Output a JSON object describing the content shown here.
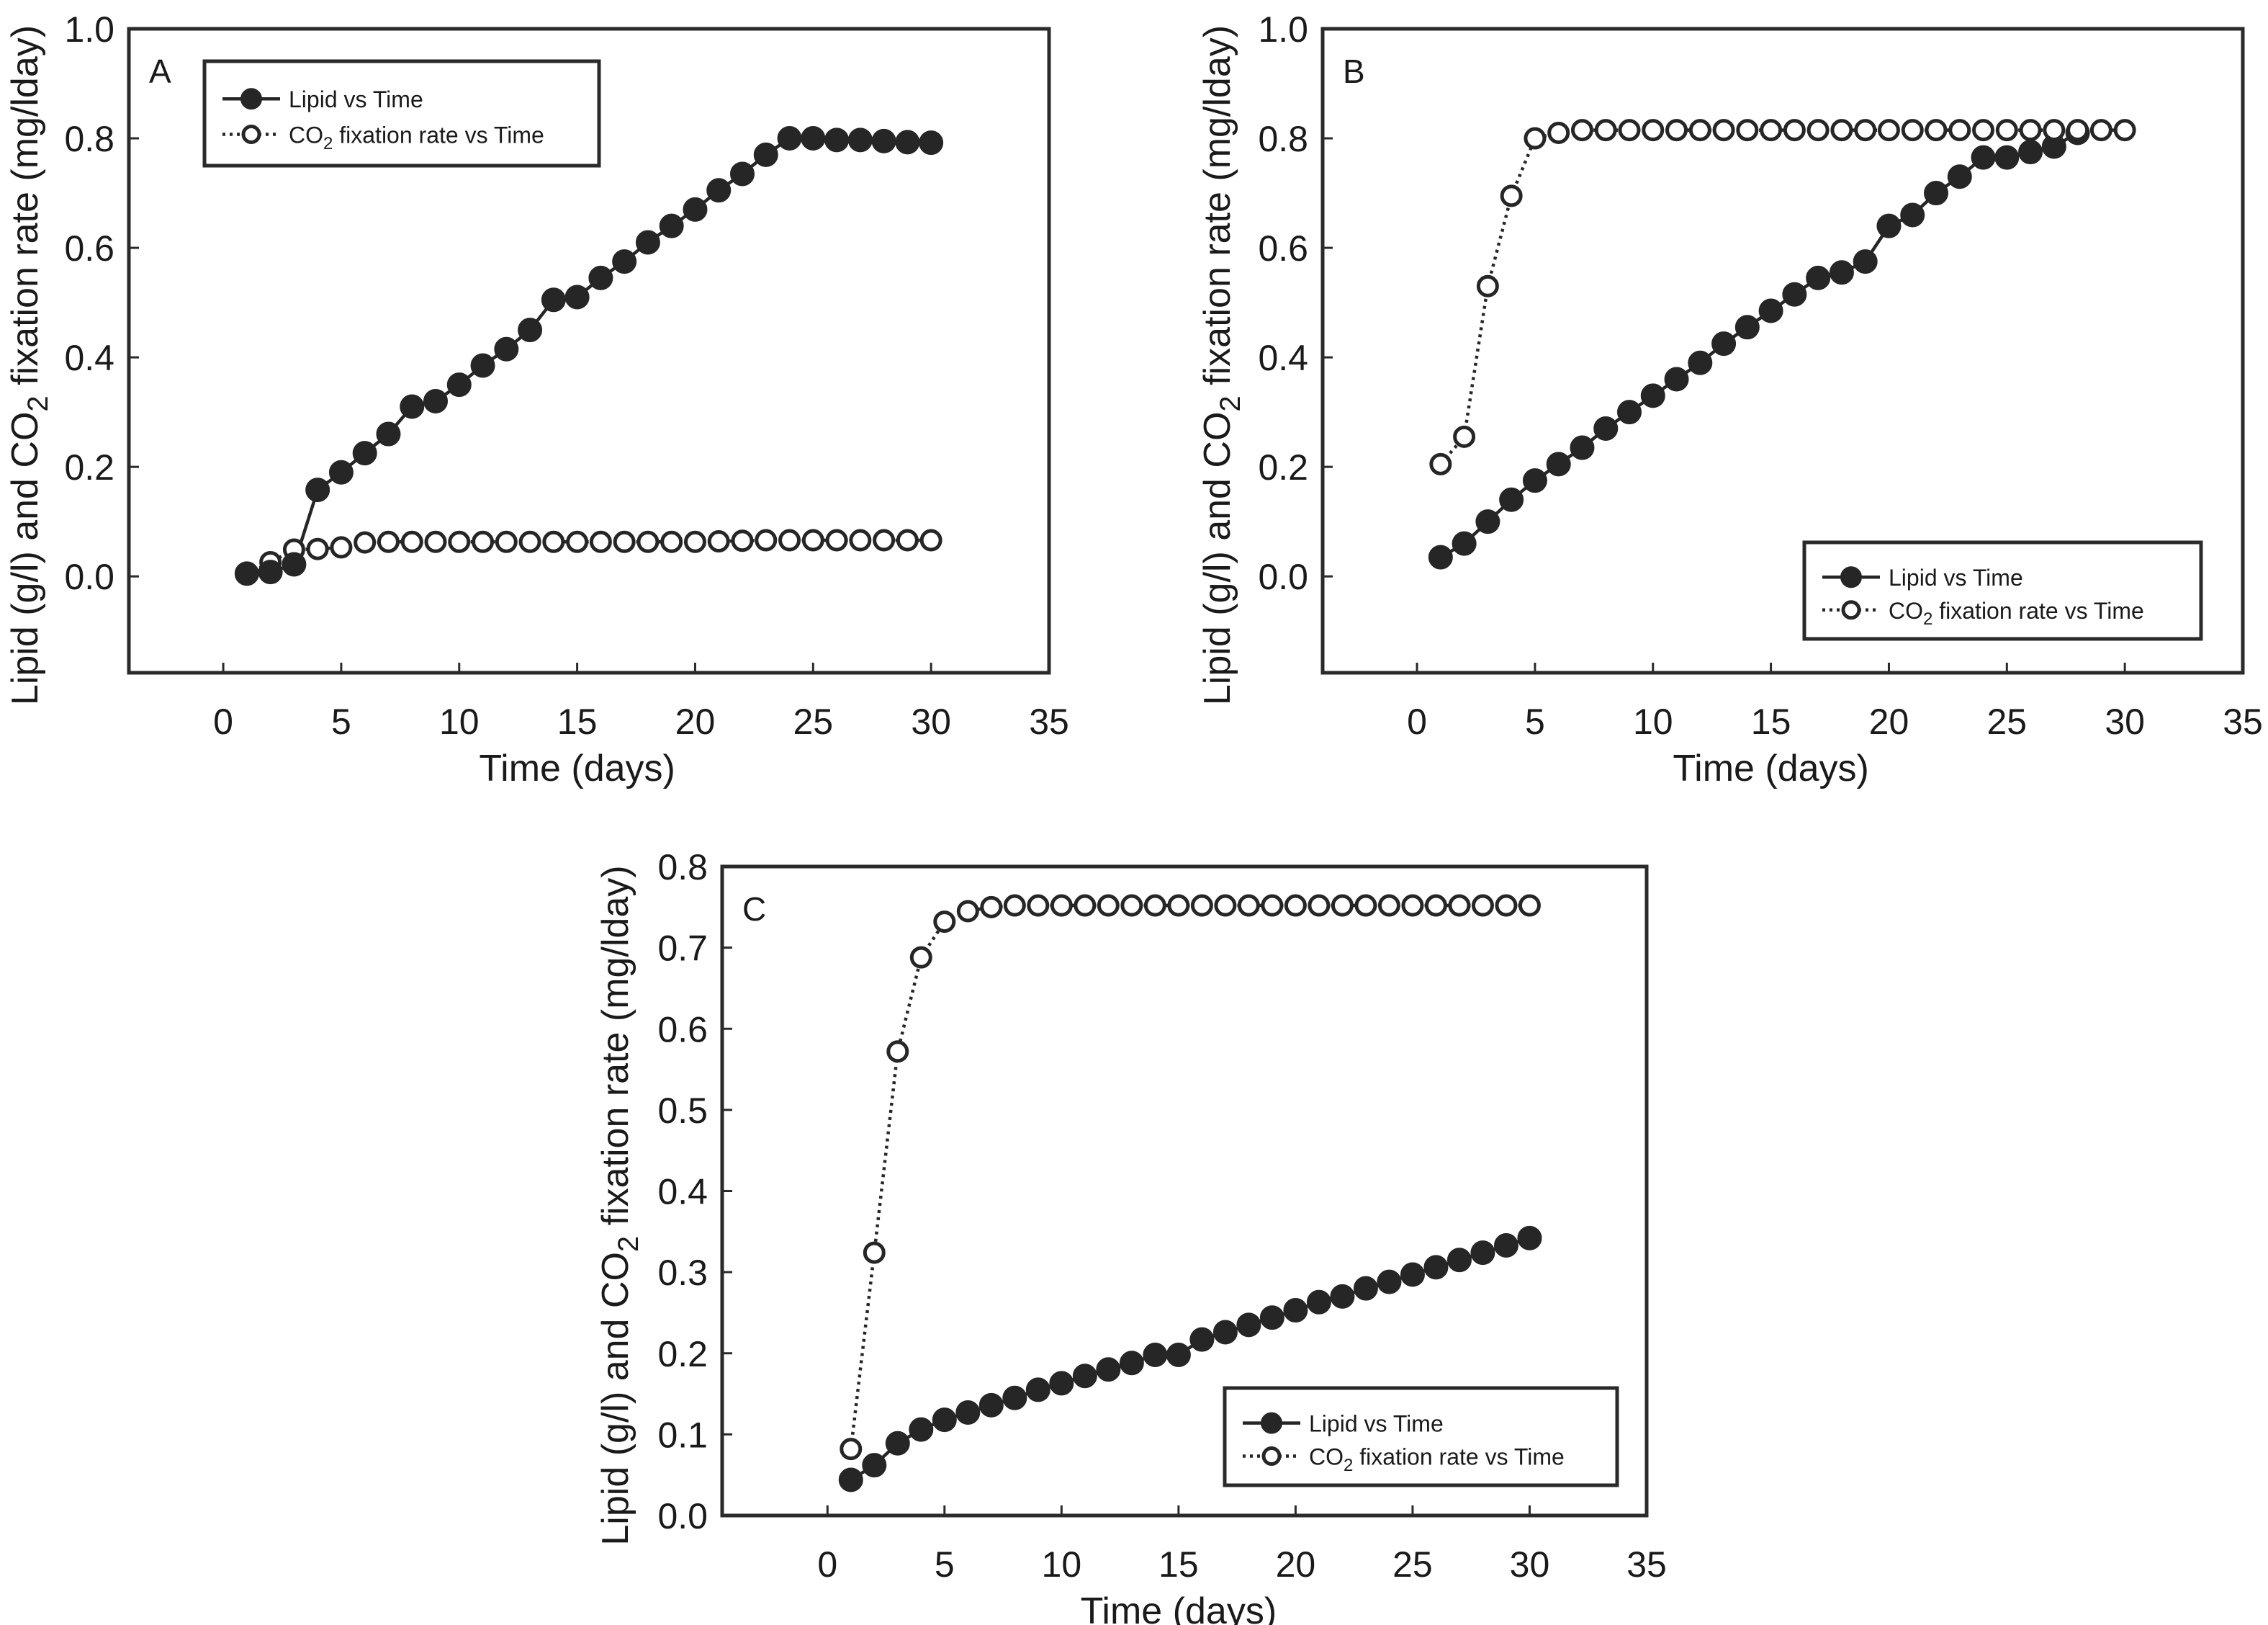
{
  "chart_data": [
    {
      "type": "line",
      "panel_label": "A",
      "xlabel": "Time (days)",
      "ylabel": "Lipid (g/l) and CO2 fixation rate (mg/lday)",
      "ylabel_parts": [
        "Lipid (g/l) and CO",
        "2",
        " fixation rate (mg/lday)"
      ],
      "xlim": [
        -4,
        35
      ],
      "ylim": [
        -0.176,
        1.0
      ],
      "xticks": [
        "0",
        "5",
        "10",
        "15",
        "20",
        "25",
        "30",
        "35"
      ],
      "yticks": [
        "0.0",
        "0.2",
        "0.4",
        "0.6",
        "0.8",
        "1.0"
      ],
      "grid": false,
      "legend_position": "top-left",
      "legend": [
        {
          "label": "Lipid vs Time",
          "label_parts": [
            "Lipid vs Time"
          ],
          "style": "solid-filled"
        },
        {
          "label": "CO2 fixation rate vs Time",
          "label_parts": [
            "CO",
            "2",
            " fixation rate vs Time"
          ],
          "style": "dotted-open"
        }
      ],
      "x": [
        1,
        2,
        3,
        4,
        5,
        6,
        7,
        8,
        9,
        10,
        11,
        12,
        13,
        14,
        15,
        16,
        17,
        18,
        19,
        20,
        21,
        22,
        23,
        24,
        25,
        26,
        27,
        28,
        29,
        30
      ],
      "series": [
        {
          "name": "Lipid vs Time",
          "values": [
            0.005,
            0.008,
            0.022,
            0.158,
            0.19,
            0.225,
            0.26,
            0.31,
            0.32,
            0.35,
            0.385,
            0.415,
            0.45,
            0.505,
            0.51,
            0.545,
            0.575,
            0.61,
            0.64,
            0.67,
            0.705,
            0.735,
            0.77,
            0.8,
            0.8,
            0.797,
            0.797,
            0.795,
            0.793,
            0.792
          ]
        },
        {
          "name": "CO2 fixation rate vs Time",
          "values": [
            0.004,
            0.026,
            0.049,
            0.05,
            0.053,
            0.062,
            0.063,
            0.063,
            0.063,
            0.063,
            0.063,
            0.063,
            0.063,
            0.063,
            0.063,
            0.063,
            0.063,
            0.063,
            0.063,
            0.063,
            0.064,
            0.065,
            0.066,
            0.066,
            0.066,
            0.066,
            0.066,
            0.066,
            0.066,
            0.066
          ]
        }
      ]
    },
    {
      "type": "line",
      "panel_label": "B",
      "xlabel": "Time (days)",
      "ylabel": "Lipid (g/l) and CO2 fixation rate (mg/lday)",
      "ylabel_parts": [
        "Lipid (g/l) and CO",
        "2",
        " fixation rate (mg/lday)"
      ],
      "xlim": [
        -4,
        35
      ],
      "ylim": [
        -0.176,
        1.0
      ],
      "xticks": [
        "0",
        "5",
        "10",
        "15",
        "20",
        "25",
        "30",
        "35"
      ],
      "yticks": [
        "0.0",
        "0.2",
        "0.4",
        "0.6",
        "0.8",
        "1.0"
      ],
      "grid": false,
      "legend_position": "bottom-right",
      "legend": [
        {
          "label": "Lipid vs Time",
          "label_parts": [
            "Lipid vs Time"
          ],
          "style": "solid-filled"
        },
        {
          "label": "CO2 fixation rate vs Time",
          "label_parts": [
            "CO",
            "2",
            " fixation rate vs Time"
          ],
          "style": "dotted-open"
        }
      ],
      "x": [
        1,
        2,
        3,
        4,
        5,
        6,
        7,
        8,
        9,
        10,
        11,
        12,
        13,
        14,
        15,
        16,
        17,
        18,
        19,
        20,
        21,
        22,
        23,
        24,
        25,
        26,
        27,
        28,
        29,
        30
      ],
      "series": [
        {
          "name": "Lipid vs Time",
          "values": [
            0.035,
            0.06,
            0.1,
            0.14,
            0.175,
            0.205,
            0.235,
            0.27,
            0.3,
            0.33,
            0.36,
            0.39,
            0.425,
            0.455,
            0.485,
            0.515,
            0.545,
            0.555,
            0.575,
            0.64,
            0.66,
            0.7,
            0.73,
            0.765,
            0.765,
            0.775,
            0.785,
            0.81,
            null,
            null
          ]
        },
        {
          "name": "CO2 fixation rate vs Time",
          "values": [
            0.205,
            0.255,
            0.53,
            0.695,
            0.8,
            0.81,
            0.815,
            0.815,
            0.815,
            0.815,
            0.815,
            0.815,
            0.815,
            0.815,
            0.815,
            0.815,
            0.815,
            0.815,
            0.815,
            0.815,
            0.815,
            0.815,
            0.815,
            0.815,
            0.815,
            0.815,
            0.815,
            0.815,
            0.815,
            0.815
          ]
        }
      ]
    },
    {
      "type": "line",
      "panel_label": "C",
      "xlabel": "Time (days)",
      "ylabel": "Lipid (g/l) and CO2 fixation rate (mg/lday)",
      "ylabel_parts": [
        "Lipid (g/l) and CO",
        "2",
        " fixation rate (mg/lday)"
      ],
      "xlim": [
        -4.5,
        35
      ],
      "ylim": [
        0,
        0.8
      ],
      "xticks": [
        "0",
        "5",
        "10",
        "15",
        "20",
        "25",
        "30",
        "35"
      ],
      "yticks": [
        "0.0",
        "0.1",
        "0.2",
        "0.3",
        "0.4",
        "0.5",
        "0.6",
        "0.7",
        "0.8"
      ],
      "grid": false,
      "legend_position": "bottom-right",
      "legend": [
        {
          "label": "Lipid vs Time",
          "label_parts": [
            "Lipid vs Time"
          ],
          "style": "solid-filled"
        },
        {
          "label": "CO2 fixation rate vs Time",
          "label_parts": [
            "CO",
            "2",
            " fixation rate vs Time"
          ],
          "style": "dotted-open"
        }
      ],
      "x": [
        1,
        2,
        3,
        4,
        5,
        6,
        7,
        8,
        9,
        10,
        11,
        12,
        13,
        14,
        15,
        16,
        17,
        18,
        19,
        20,
        21,
        22,
        23,
        24,
        25,
        26,
        27,
        28,
        29,
        30
      ],
      "series": [
        {
          "name": "Lipid vs Time",
          "values": [
            0.044,
            0.062,
            0.089,
            0.106,
            0.118,
            0.127,
            0.136,
            0.145,
            0.155,
            0.163,
            0.172,
            0.18,
            0.188,
            0.198,
            0.198,
            0.217,
            0.226,
            0.235,
            0.244,
            0.253,
            0.263,
            0.27,
            0.28,
            0.288,
            0.297,
            0.306,
            0.315,
            0.324,
            0.333,
            0.342
          ]
        },
        {
          "name": "CO2 fixation rate vs Time",
          "values": [
            0.082,
            0.324,
            0.572,
            0.688,
            0.732,
            0.745,
            0.75,
            0.752,
            0.752,
            0.752,
            0.752,
            0.752,
            0.752,
            0.752,
            0.752,
            0.752,
            0.752,
            0.752,
            0.752,
            0.752,
            0.752,
            0.752,
            0.752,
            0.752,
            0.752,
            0.752,
            0.752,
            0.752,
            0.752,
            0.752
          ]
        }
      ]
    }
  ]
}
